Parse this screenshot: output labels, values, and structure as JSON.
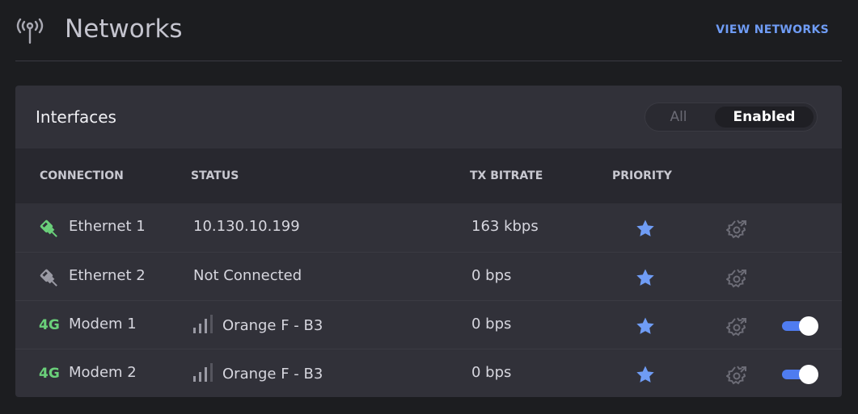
{
  "header": {
    "title": "Networks",
    "icon": "antenna-icon",
    "view_link": "VIEW NETWORKS"
  },
  "card": {
    "title": "Interfaces",
    "filter": {
      "options": [
        "All",
        "Enabled"
      ],
      "selected": "Enabled"
    }
  },
  "table": {
    "columns": [
      "CONNECTION",
      "STATUS",
      "TX BITRATE",
      "PRIORITY"
    ],
    "rows": [
      {
        "type": "ethernet",
        "icon_color": "#6ad07a",
        "name": "Ethernet 1",
        "status": "10.130.10.199",
        "tx": "163 kbps",
        "priority": true,
        "toggle": null
      },
      {
        "type": "ethernet",
        "icon_color": "#9a9aa4",
        "name": "Ethernet 2",
        "status": "Not Connected",
        "tx": "0 bps",
        "priority": true,
        "toggle": null
      },
      {
        "type": "4g",
        "badge": "4G",
        "name": "Modem 1",
        "status": "Orange F - B3",
        "signal_bars": 3,
        "tx": "0 bps",
        "priority": true,
        "toggle": true
      },
      {
        "type": "4g",
        "badge": "4G",
        "name": "Modem 2",
        "status": "Orange F - B3",
        "signal_bars": 3,
        "tx": "0 bps",
        "priority": true,
        "toggle": true
      }
    ]
  },
  "colors": {
    "accent": "#6f9cf5",
    "green": "#6ad07a",
    "toggle": "#4f7cf0"
  }
}
